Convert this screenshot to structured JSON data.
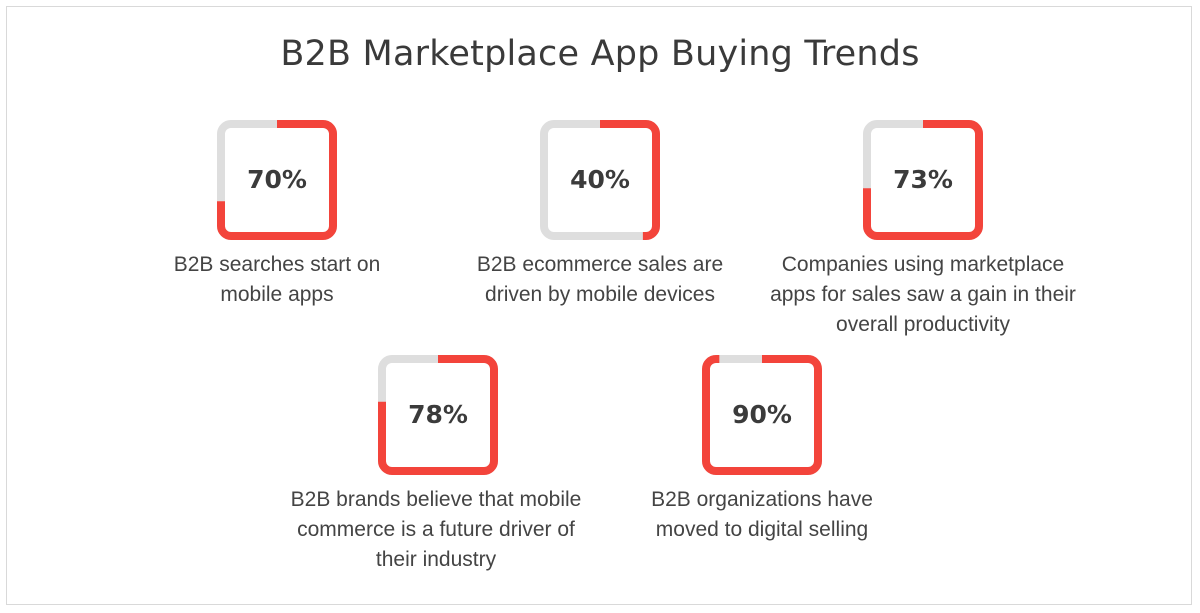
{
  "title": "B2B Marketplace App Buying Trends",
  "colors": {
    "accent": "#f3443b",
    "track": "#dedede",
    "text": "#444444"
  },
  "stats": [
    {
      "value": 0.7,
      "label": "70%",
      "description": "B2B searches start on mobile apps"
    },
    {
      "value": 0.4,
      "label": "40%",
      "description": "B2B ecommerce sales are driven by mobile devices"
    },
    {
      "value": 0.73,
      "label": "73%",
      "description": "Companies using marketplace apps for sales saw a gain in their overall productivity"
    },
    {
      "value": 0.78,
      "label": "78%",
      "description": "B2B brands believe that mobile commerce is a future driver of their industry"
    },
    {
      "value": 0.9,
      "label": "90%",
      "description": "B2B organizations have moved to digital selling"
    }
  ]
}
